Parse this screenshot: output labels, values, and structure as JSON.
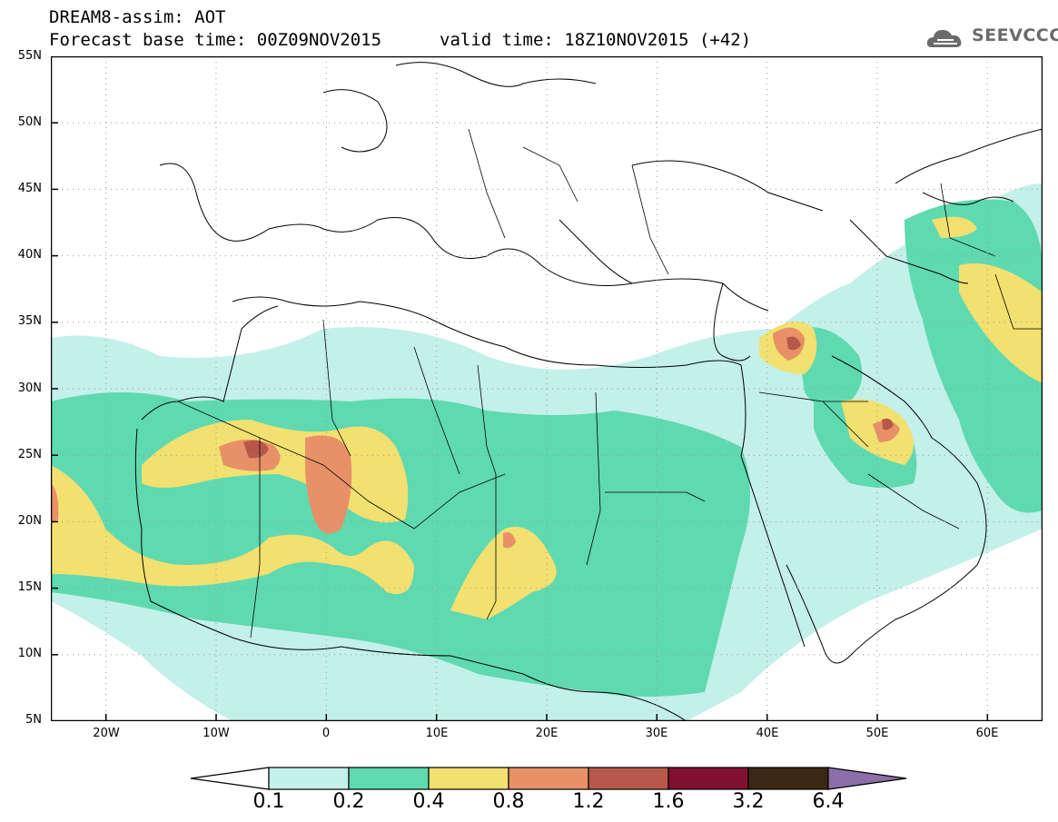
{
  "header": {
    "title_line1": "DREAM8-assim: AOT",
    "title_line2": "Forecast base time: 00Z09NOV2015",
    "valid_time": "valid time: 18Z10NOV2015 (+42)",
    "logo_text": "SEEVCCC"
  },
  "map": {
    "lat_labels": [
      "55N",
      "50N",
      "45N",
      "40N",
      "35N",
      "30N",
      "25N",
      "20N",
      "15N",
      "10N",
      "5N"
    ],
    "lon_labels": [
      "20W",
      "10W",
      "0",
      "10E",
      "20E",
      "30E",
      "40E",
      "50E",
      "60E"
    ],
    "lat_range": [
      5,
      55
    ],
    "lon_range": [
      -25,
      65
    ]
  },
  "colorbar": {
    "labels": [
      "0.1",
      "0.2",
      "0.4",
      "0.8",
      "1.2",
      "1.6",
      "3.2",
      "6.4"
    ],
    "colors": [
      "#ffffff",
      "#c3f0e8",
      "#5fd9b0",
      "#f2e070",
      "#e89068",
      "#b8584a",
      "#801030",
      "#3a2814",
      "#8c6fa8"
    ]
  }
}
